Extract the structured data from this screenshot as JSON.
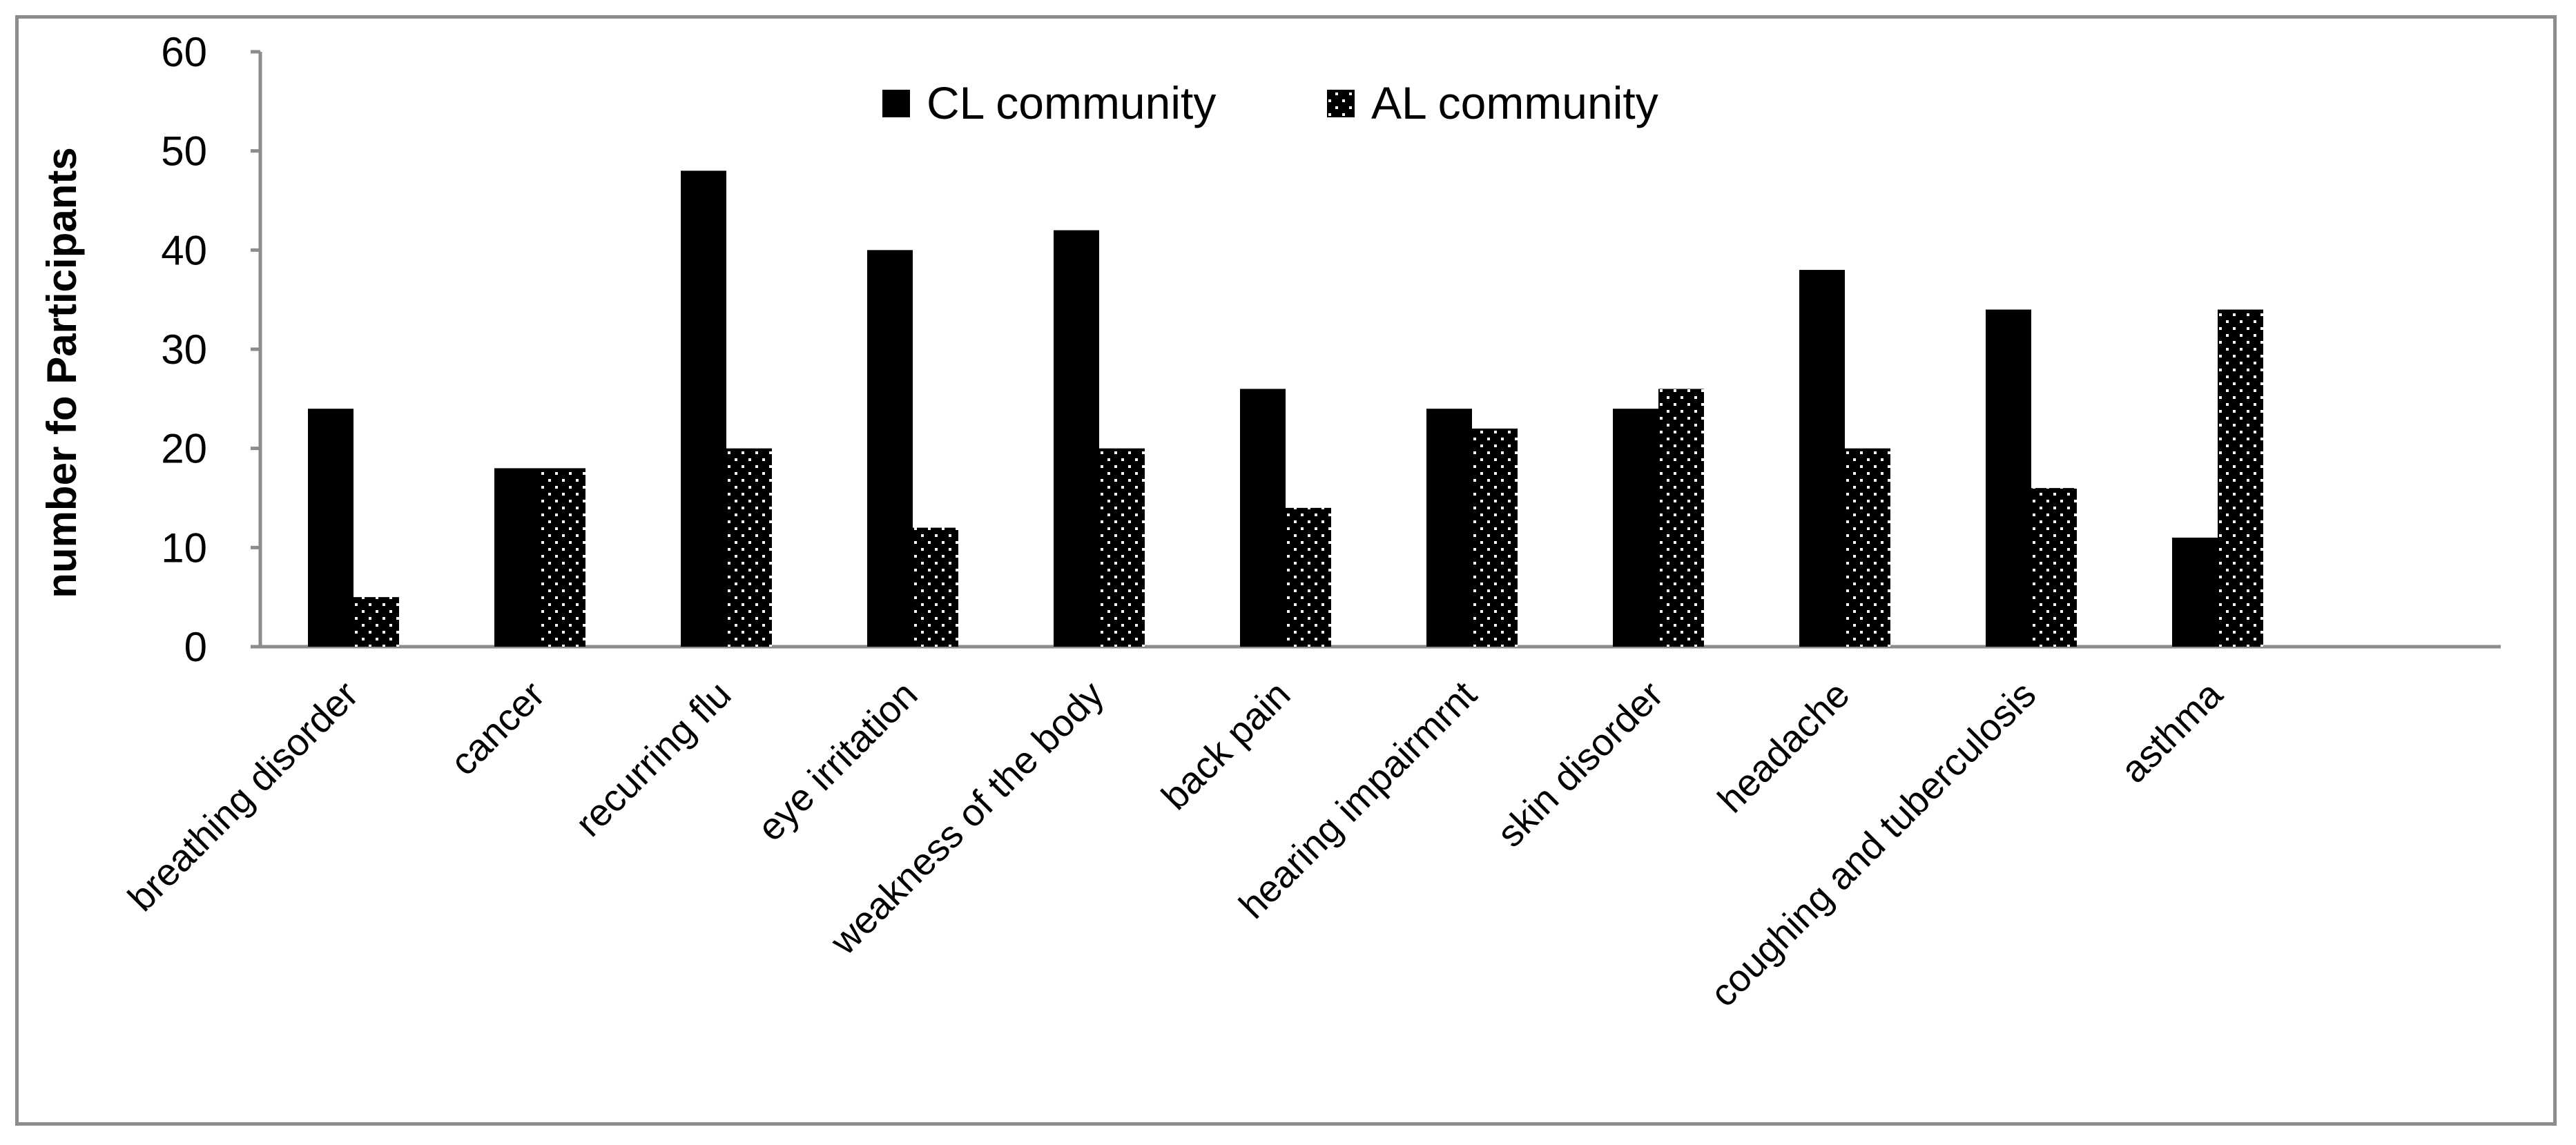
{
  "chart_data": {
    "type": "bar",
    "title": "",
    "xlabel": "",
    "ylabel": "number fo Participants",
    "ylim": [
      0,
      60
    ],
    "yticks": [
      0,
      10,
      20,
      30,
      40,
      50,
      60
    ],
    "grid": false,
    "legend_position": "top-center",
    "categories": [
      "breathing disorder",
      "cancer",
      "recurring flu",
      "eye irritation",
      "weakness of the body",
      "back pain",
      "hearing impairmrnt",
      "skin disorder",
      "headache",
      "coughing and tuberculosis",
      "asthma"
    ],
    "series": [
      {
        "name": "CL community",
        "pattern": "solid",
        "values": [
          24,
          18,
          48,
          40,
          42,
          26,
          24,
          24,
          38,
          34,
          11
        ]
      },
      {
        "name": "AL community",
        "pattern": "dotted",
        "values": [
          5,
          18,
          20,
          12,
          20,
          14,
          22,
          26,
          20,
          16,
          34
        ]
      }
    ]
  },
  "colors": {
    "bar_fill": "#000000",
    "dot_color": "#ffffff",
    "axis": "#8c8c8c",
    "frame": "#8c8c8c"
  }
}
